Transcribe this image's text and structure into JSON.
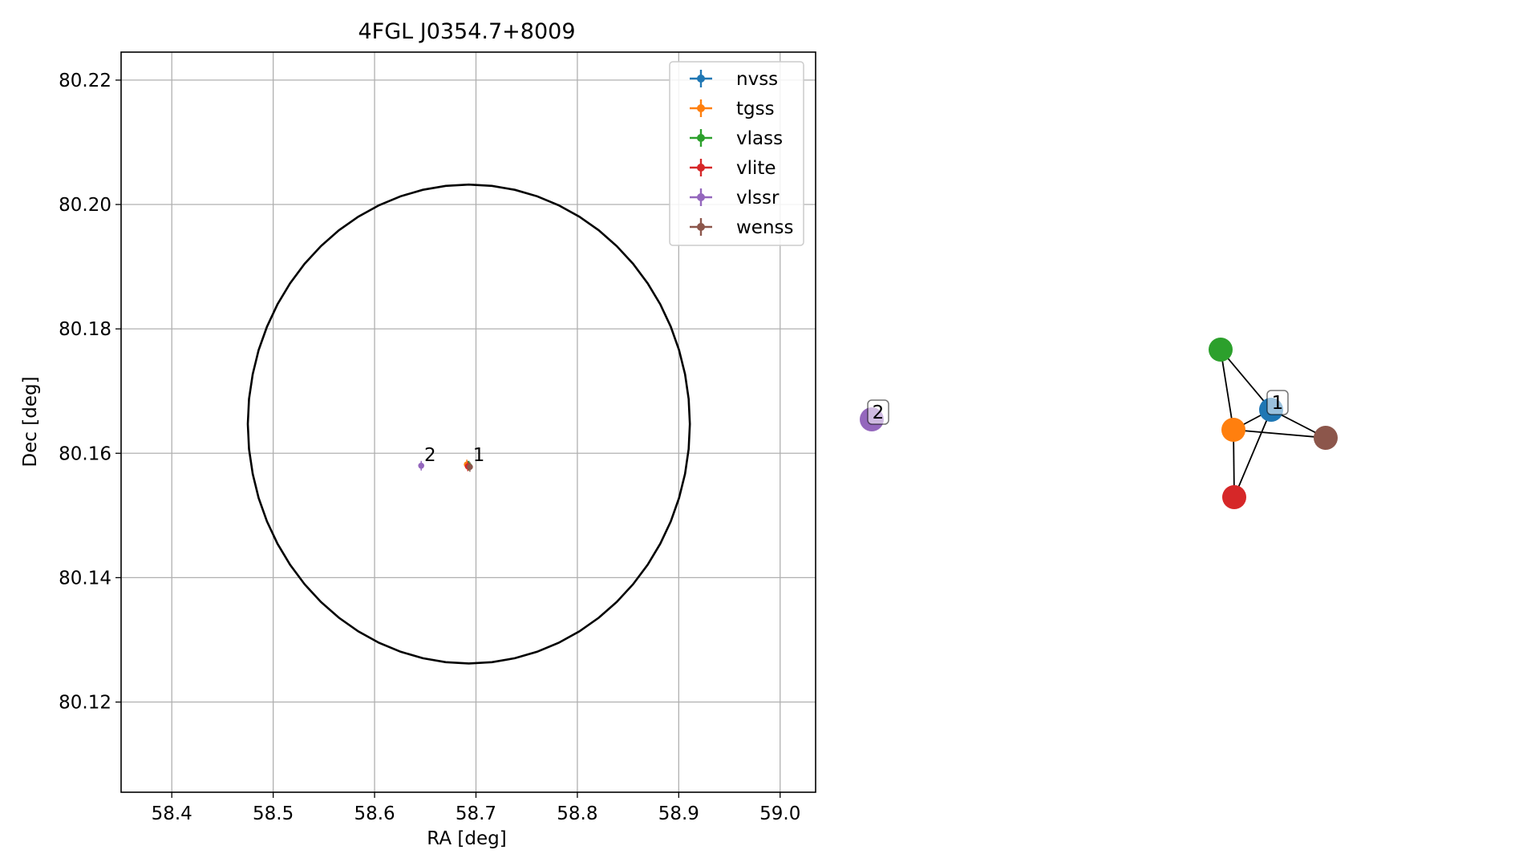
{
  "chart_data": [
    {
      "type": "scatter",
      "title": "4FGL J0354.7+8009",
      "xlabel": "RA [deg]",
      "ylabel": "Dec [deg]",
      "xlim": [
        58.35,
        59.035
      ],
      "ylim": [
        80.1055,
        80.2245
      ],
      "xticks": [
        "58.4",
        "58.5",
        "58.6",
        "58.7",
        "58.8",
        "58.9",
        "59.0"
      ],
      "yticks": [
        "80.12",
        "80.14",
        "80.16",
        "80.18",
        "80.20",
        "80.22"
      ],
      "grid": true,
      "legend_position": "upper right",
      "error_ellipse": {
        "ra_center": 58.693,
        "dec_center": 80.1647,
        "ra_halfwidth": 0.218,
        "dec_halfwidth": 0.0385,
        "color": "#000000"
      },
      "series": [
        {
          "name": "nvss",
          "color": "#1f77b4",
          "points": [
            {
              "ra": 58.692,
              "dec": 80.158
            }
          ]
        },
        {
          "name": "tgss",
          "color": "#ff7f0e",
          "points": [
            {
              "ra": 58.691,
              "dec": 80.1582
            }
          ]
        },
        {
          "name": "vlass",
          "color": "#2ca02c",
          "points": [
            {
              "ra": 58.693,
              "dec": 80.158
            }
          ]
        },
        {
          "name": "vlite",
          "color": "#d62728",
          "points": [
            {
              "ra": 58.692,
              "dec": 80.1579
            }
          ]
        },
        {
          "name": "vlssr",
          "color": "#9467bd",
          "points": [
            {
              "ra": 58.646,
              "dec": 80.158
            }
          ]
        },
        {
          "name": "wenss",
          "color": "#8c564b",
          "points": [
            {
              "ra": 58.694,
              "dec": 80.1578
            }
          ]
        }
      ],
      "annotations": [
        {
          "text": "1",
          "ra": 58.697,
          "dec": 80.1598
        },
        {
          "text": "2",
          "ra": 58.649,
          "dec": 80.1598
        }
      ]
    },
    {
      "type": "network",
      "nodes": [
        {
          "id": "vlssr",
          "color": "#9467bd"
        },
        {
          "id": "vlass",
          "color": "#2ca02c"
        },
        {
          "id": "nvss",
          "color": "#1f77b4"
        },
        {
          "id": "tgss",
          "color": "#ff7f0e"
        },
        {
          "id": "wenss",
          "color": "#8c564b"
        },
        {
          "id": "vlite",
          "color": "#d62728"
        }
      ],
      "edges": [
        [
          "vlass",
          "nvss"
        ],
        [
          "vlass",
          "tgss"
        ],
        [
          "tgss",
          "nvss"
        ],
        [
          "tgss",
          "wenss"
        ],
        [
          "tgss",
          "vlite"
        ],
        [
          "nvss",
          "wenss"
        ],
        [
          "nvss",
          "vlite"
        ]
      ],
      "group_labels": [
        {
          "text": "1",
          "node": "nvss"
        },
        {
          "text": "2",
          "node": "vlssr"
        }
      ]
    }
  ]
}
